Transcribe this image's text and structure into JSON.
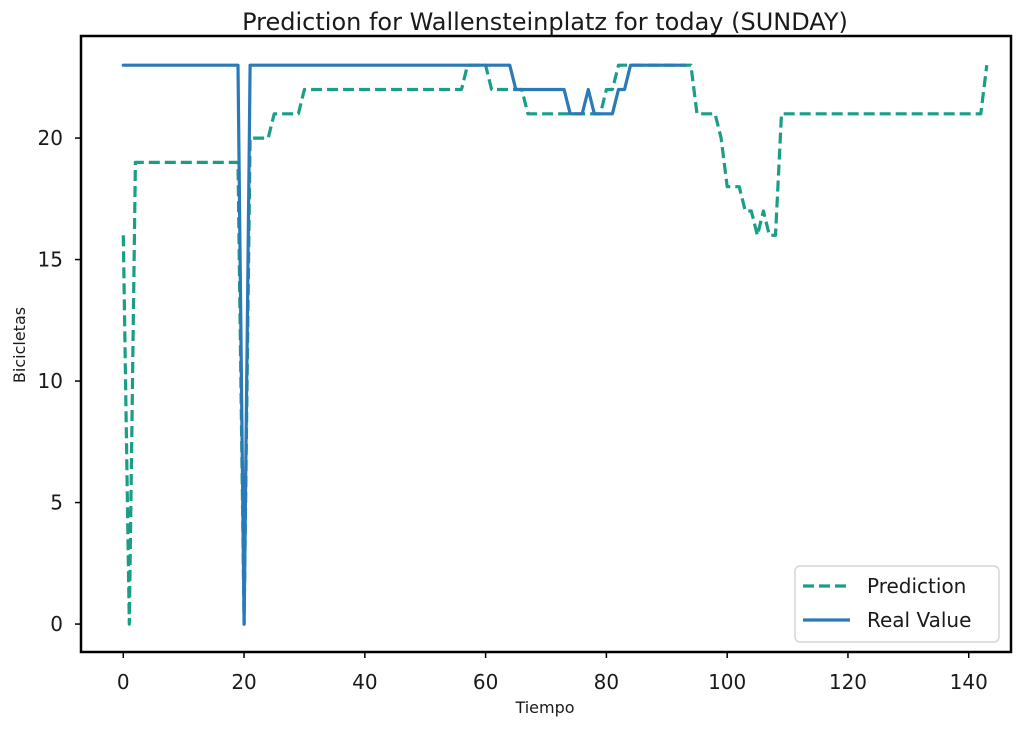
{
  "chart_data": {
    "type": "line",
    "title": "Prediction for Wallensteinplatz for today (SUNDAY)",
    "xlabel": "Tiempo",
    "ylabel": "Bicicletas",
    "xlim": [
      -7,
      147
    ],
    "ylim": [
      -1.15,
      24.2
    ],
    "xticks": [
      0,
      20,
      40,
      60,
      80,
      100,
      120,
      140
    ],
    "yticks": [
      0,
      5,
      10,
      15,
      20
    ],
    "grid": false,
    "legend_position": "bottom-right",
    "series": [
      {
        "name": "Prediction",
        "color": "#1a9e85",
        "dashed": true,
        "x": [
          0,
          1,
          2,
          19,
          20,
          21,
          23,
          24,
          25,
          28,
          29,
          30,
          31,
          56,
          57,
          58,
          60,
          61,
          62,
          64,
          66,
          67,
          68,
          70,
          73,
          76,
          77,
          78,
          79,
          80,
          81,
          82,
          94,
          95,
          98,
          99,
          100,
          101,
          102,
          103,
          104,
          105,
          106,
          107,
          108,
          109,
          142,
          143
        ],
        "y": [
          16,
          0,
          19,
          19,
          0,
          20,
          20,
          20,
          21,
          21,
          21,
          22,
          22,
          22,
          23,
          23,
          23,
          22,
          22,
          22,
          22,
          21,
          21,
          21,
          21,
          21,
          21,
          21,
          21,
          22,
          22,
          23,
          23,
          21,
          21,
          20,
          18,
          18,
          18,
          17,
          17,
          16,
          17,
          16,
          16,
          21,
          21,
          23
        ]
      },
      {
        "name": "Real Value",
        "color": "#2a7ab9",
        "dashed": false,
        "x": [
          0,
          19,
          20,
          21,
          64,
          65,
          73,
          74,
          76,
          77,
          78,
          79,
          81,
          82,
          83,
          84,
          93
        ],
        "y": [
          23,
          23,
          0,
          23,
          23,
          22,
          22,
          21,
          21,
          22,
          21,
          21,
          21,
          22,
          22,
          23,
          23
        ]
      }
    ]
  }
}
